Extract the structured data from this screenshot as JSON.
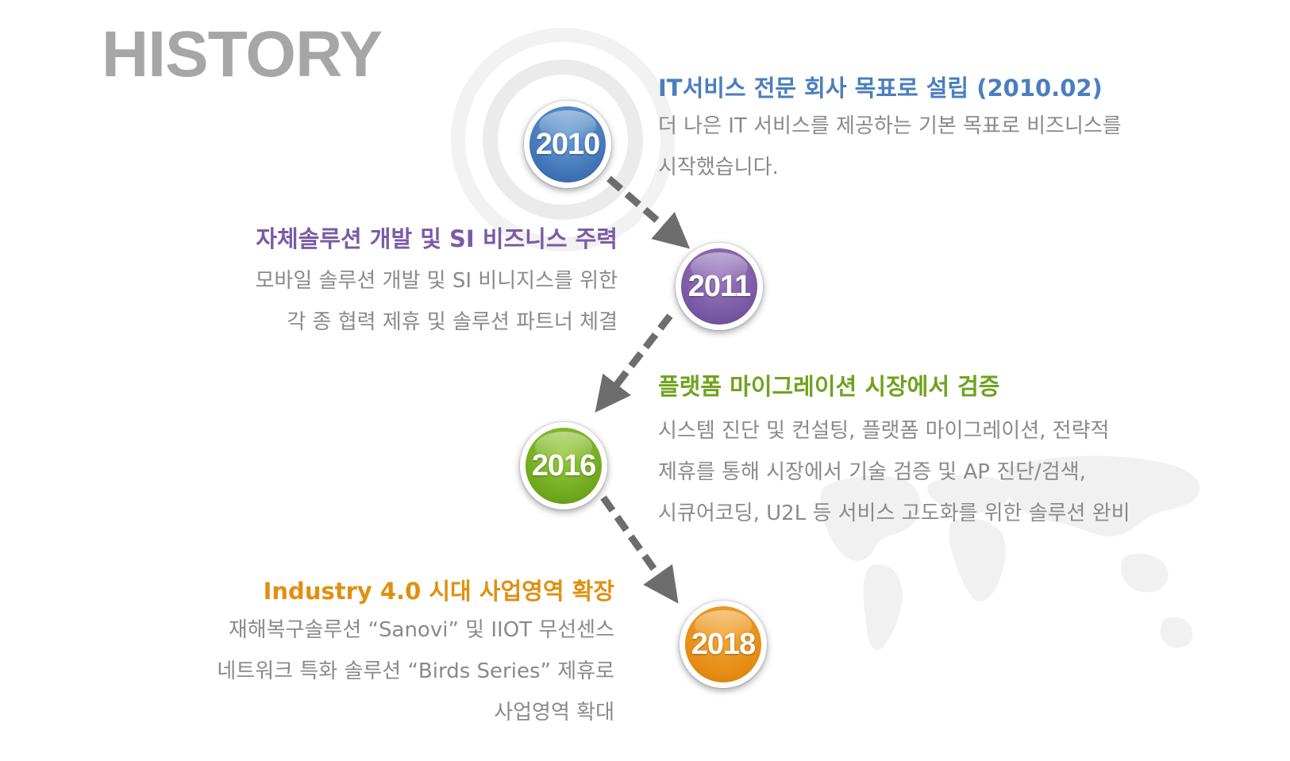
{
  "page": {
    "title": "HISTORY"
  },
  "milestones": [
    {
      "year": "2010",
      "heading": "IT서비스 전문 회사 목표로 설립 (2010.02)",
      "lines": [
        "더 나은 IT 서비스를 제공하는 기본 목표로 비즈니스를",
        "시작했습니다."
      ],
      "color": "#4a7ebf"
    },
    {
      "year": "2011",
      "heading": "자체솔루션 개발 및 SI 비즈니스 주력",
      "lines": [
        "모바일 솔루션 개발 및 SI 비니지스를 위한",
        "각 종 협력 제휴 및 솔루션 파트너 체결"
      ],
      "color": "#7a5ca5"
    },
    {
      "year": "2016",
      "heading": "플랫폼 마이그레이션 시장에서 검증",
      "lines": [
        "시스템 진단 및 컨설팅, 플랫폼 마이그레이션, 전략적",
        "제휴를 통해 시장에서 기술 검증 및 AP 진단/검색,",
        "시큐어코딩, U2L 등 서비스 고도화를 위한 솔루션 완비"
      ],
      "color": "#6fa21e"
    },
    {
      "year": "2018",
      "heading": "Industry 4.0 시대 사업영역 확장",
      "lines": [
        "재해복구솔루션 “Sanovi” 및 IIOT 무선센스",
        "네트워크 특화 솔루션 “Birds Series” 제휴로",
        "사업영역 확대"
      ],
      "color": "#e0900f"
    }
  ]
}
